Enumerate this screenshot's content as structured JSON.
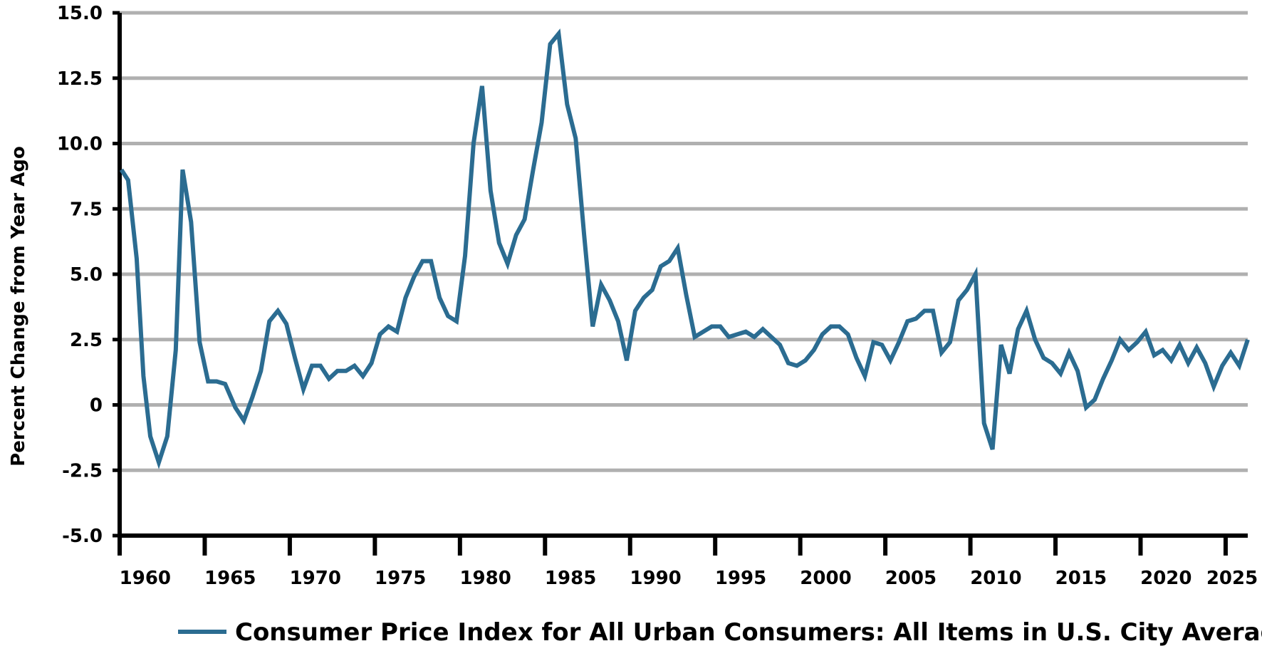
{
  "chart_data": {
    "type": "line",
    "title": "",
    "xlabel": "",
    "ylabel": "Percent Change from Year Ago",
    "ylim": [
      -5.0,
      15.0
    ],
    "yticks": [
      "15.0",
      "12.5",
      "10.0",
      "7.5",
      "5.0",
      "2.5",
      "0",
      "-2.5",
      "-5.0"
    ],
    "xlim": [
      1958.5,
      2024.8
    ],
    "xtick_labels": [
      "1960",
      "1965",
      "1970",
      "1975",
      "1980",
      "1985",
      "1990",
      "1995",
      "2000",
      "2005",
      "2010",
      "2015",
      "2020",
      "2025"
    ],
    "grid": "horizontal",
    "legend_position": "bottom",
    "series": [
      {
        "name": "Consumer Price Index for All Urban Consumers: All Items in U.S. City Average",
        "color": "#2b6c91",
        "x": [
          1958.6,
          1959.0,
          1959.5,
          1959.9,
          1960.3,
          1960.8,
          1961.3,
          1961.8,
          1962.2,
          1962.7,
          1963.2,
          1963.7,
          1964.2,
          1964.7,
          1965.3,
          1965.8,
          1966.3,
          1966.8,
          1967.3,
          1967.8,
          1968.3,
          1968.8,
          1969.3,
          1969.8,
          1970.3,
          1970.8,
          1971.3,
          1971.8,
          1972.3,
          1972.8,
          1973.3,
          1973.8,
          1974.3,
          1974.8,
          1975.3,
          1975.8,
          1976.3,
          1976.8,
          1977.3,
          1977.8,
          1978.3,
          1978.8,
          1979.3,
          1979.8,
          1980.3,
          1980.8,
          1981.3,
          1981.8,
          1982.3,
          1982.8,
          1983.3,
          1983.8,
          1984.3,
          1984.8,
          1985.3,
          1985.8,
          1986.3,
          1986.8,
          1987.3,
          1987.8,
          1988.3,
          1988.8,
          1989.3,
          1989.8,
          1990.3,
          1990.8,
          1991.3,
          1991.8,
          1992.3,
          1992.8,
          1993.3,
          1993.8,
          1994.3,
          1994.8,
          1995.3,
          1995.8,
          1996.3,
          1996.8,
          1997.3,
          1997.8,
          1998.3,
          1998.8,
          1999.3,
          1999.8,
          2000.3,
          2000.8,
          2001.3,
          2001.8,
          2002.3,
          2002.8,
          2003.3,
          2003.8,
          2004.3,
          2004.8,
          2005.3,
          2005.8,
          2006.3,
          2006.8,
          2007.3,
          2007.8,
          2008.3,
          2008.8,
          2009.3,
          2009.8,
          2010.3,
          2010.8,
          2011.3,
          2011.8,
          2012.3,
          2012.8,
          2013.3,
          2013.8,
          2014.3,
          2014.8,
          2015.3,
          2015.8,
          2016.3,
          2016.8,
          2017.3,
          2017.8,
          2018.3,
          2018.8,
          2019.3,
          2019.8,
          2020.3,
          2020.8,
          2021.3,
          2021.8,
          2022.3,
          2022.8,
          2023.3,
          2023.8,
          2024.3,
          2024.8
        ],
        "y": [
          9.0,
          8.6,
          5.6,
          1.1,
          -1.2,
          -2.2,
          -1.2,
          2.1,
          9.0,
          7.0,
          2.4,
          0.9,
          0.9,
          0.8,
          -0.1,
          -0.6,
          0.3,
          1.3,
          3.2,
          3.6,
          3.1,
          1.8,
          0.6,
          1.5,
          1.5,
          1.0,
          1.3,
          1.3,
          1.5,
          1.1,
          1.6,
          2.7,
          3.0,
          2.8,
          4.1,
          4.9,
          5.5,
          5.5,
          4.1,
          3.4,
          3.2,
          5.7,
          10.0,
          12.2,
          8.2,
          6.2,
          5.4,
          6.5,
          7.1,
          9.0,
          10.8,
          13.8,
          14.2,
          11.5,
          10.2,
          6.5,
          3.0,
          4.6,
          4.0,
          3.2,
          1.7,
          3.6,
          4.1,
          4.4,
          5.3,
          5.5,
          6.0,
          4.2,
          2.6,
          2.8,
          3.0,
          3.0,
          2.6,
          2.7,
          2.8,
          2.6,
          2.9,
          2.6,
          2.3,
          1.6,
          1.5,
          1.7,
          2.1,
          2.7,
          3.0,
          3.0,
          2.7,
          1.8,
          1.1,
          2.4,
          2.3,
          1.7,
          2.4,
          3.2,
          3.3,
          3.6,
          3.6,
          2.0,
          2.4,
          4.0,
          4.4,
          5.0,
          -0.7,
          -1.7,
          2.3,
          1.2,
          2.9,
          3.6,
          2.5,
          1.8,
          1.6,
          1.2,
          2.0,
          1.3,
          -0.1,
          0.2,
          1.0,
          1.7,
          2.5,
          2.1,
          2.4,
          2.8,
          1.9,
          2.1,
          1.7,
          2.3,
          1.6,
          2.2,
          1.6,
          0.7,
          1.5,
          2.0,
          1.5,
          2.5
        ]
      }
    ]
  }
}
